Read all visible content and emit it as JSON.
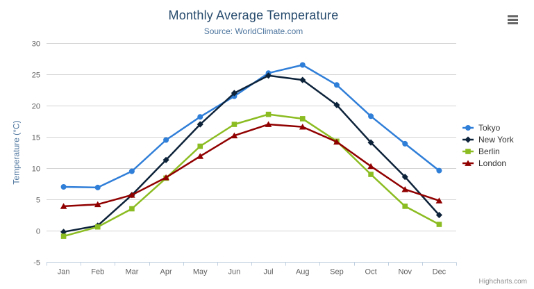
{
  "header": {
    "title": "Monthly Average Temperature",
    "subtitle": "Source: WorldClimate.com"
  },
  "credits_label": "Highcharts.com",
  "export_menu_icon": "hamburger-icon",
  "chart_data": {
    "type": "line",
    "title": "Monthly Average Temperature",
    "subtitle": "Source: WorldClimate.com",
    "categories": [
      "Jan",
      "Feb",
      "Mar",
      "Apr",
      "May",
      "Jun",
      "Jul",
      "Aug",
      "Sep",
      "Oct",
      "Nov",
      "Dec"
    ],
    "series": [
      {
        "name": "Tokyo",
        "color": "#2f7ed8",
        "marker": "circle",
        "values": [
          7.0,
          6.9,
          9.5,
          14.5,
          18.2,
          21.5,
          25.2,
          26.5,
          23.3,
          18.3,
          13.9,
          9.6
        ]
      },
      {
        "name": "New York",
        "color": "#0d233a",
        "marker": "diamond",
        "values": [
          -0.2,
          0.8,
          5.7,
          11.3,
          17.0,
          22.0,
          24.8,
          24.1,
          20.1,
          14.1,
          8.6,
          2.5
        ]
      },
      {
        "name": "Berlin",
        "color": "#8bbc21",
        "marker": "square",
        "values": [
          -0.9,
          0.6,
          3.5,
          8.4,
          13.5,
          17.0,
          18.6,
          17.9,
          14.3,
          9.0,
          3.9,
          1.0
        ]
      },
      {
        "name": "London",
        "color": "#910000",
        "marker": "triangle",
        "values": [
          3.9,
          4.2,
          5.7,
          8.5,
          11.9,
          15.2,
          17.0,
          16.6,
          14.2,
          10.3,
          6.6,
          4.8
        ]
      }
    ],
    "xlabel": "",
    "ylabel": "Temperature (°C)",
    "ylim": [
      -5,
      30
    ],
    "ytick_step": 5,
    "grid": true,
    "legend_position": "right",
    "colors": {
      "grid_line": "#d3d3d3",
      "axis_line": "#c0d0e0",
      "tick_label": "#606060",
      "title_text": "#274b6d",
      "subtitle_text": "#4d759e",
      "axis_title_text": "#4d759e",
      "legend_text": "#333333",
      "credits_text": "#909090"
    }
  }
}
